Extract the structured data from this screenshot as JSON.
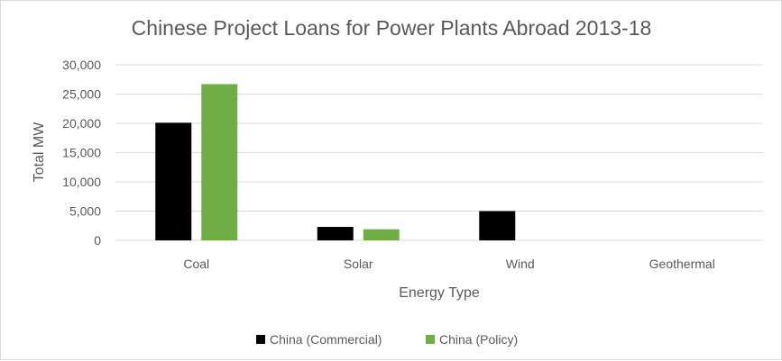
{
  "chart_data": {
    "type": "bar",
    "title": "Chinese Project Loans for Power Plants Abroad 2013-18",
    "xlabel": "Energy Type",
    "ylabel": "Total MW",
    "categories": [
      "Coal",
      "Solar",
      "Wind",
      "Geothermal"
    ],
    "series": [
      {
        "name": "China (Commercial)",
        "color": "#000000",
        "values": [
          20100,
          2300,
          5000,
          0
        ]
      },
      {
        "name": "China (Policy)",
        "color": "#70ad47",
        "values": [
          26700,
          1900,
          0,
          0
        ]
      }
    ],
    "ylim": [
      0,
      30000
    ],
    "yticks": [
      0,
      5000,
      10000,
      15000,
      20000,
      25000,
      30000
    ],
    "ytick_labels": [
      "0",
      "5,000",
      "10,000",
      "15,000",
      "20,000",
      "25,000",
      "30,000"
    ],
    "grid": true,
    "legend_position": "bottom"
  },
  "colors": {
    "gridline": "#d9d9d9",
    "text": "#595959"
  }
}
